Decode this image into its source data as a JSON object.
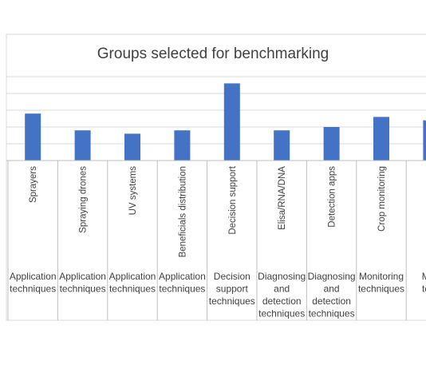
{
  "chart_data": {
    "type": "bar",
    "title": "Groups selected for benchmarking",
    "categories": [
      "Sprayers",
      "Spraying drones",
      "UV systems",
      "Beneficials distribution",
      "Decision support",
      "Elisa/RNA/DNA",
      "Detection apps",
      "Crop monitoring",
      ""
    ],
    "groups": [
      {
        "label": [
          "Application",
          "techniques"
        ],
        "span": [
          0,
          0
        ]
      },
      {
        "label": [
          "Application",
          "techniques"
        ],
        "span": [
          1,
          1
        ]
      },
      {
        "label": [
          "Application",
          "techniques"
        ],
        "span": [
          2,
          2
        ]
      },
      {
        "label": [
          "Application",
          "techniques"
        ],
        "span": [
          3,
          3
        ]
      },
      {
        "label": [
          "Decision",
          "support",
          "techniques"
        ],
        "span": [
          4,
          4
        ]
      },
      {
        "label": [
          "Diagnosing",
          "and",
          "detection",
          "techniques"
        ],
        "span": [
          5,
          5
        ]
      },
      {
        "label": [
          "Diagnosing",
          "and",
          "detection",
          "techniques"
        ],
        "span": [
          6,
          6
        ]
      },
      {
        "label": [
          "Monitoring",
          "techniques"
        ],
        "span": [
          7,
          7
        ]
      },
      {
        "label": [
          "Mon",
          "tech"
        ],
        "span": [
          8,
          8
        ]
      }
    ],
    "values": [
      2.8,
      1.8,
      1.6,
      1.8,
      4.6,
      1.8,
      2.0,
      2.6,
      2.4
    ],
    "ylim": [
      0,
      5
    ],
    "gridlines": true,
    "bar_color": "#4472c4",
    "gridline_color": "#d9d9d9",
    "axis_line_color": "#bfbfbf",
    "text_color": "#404040"
  }
}
